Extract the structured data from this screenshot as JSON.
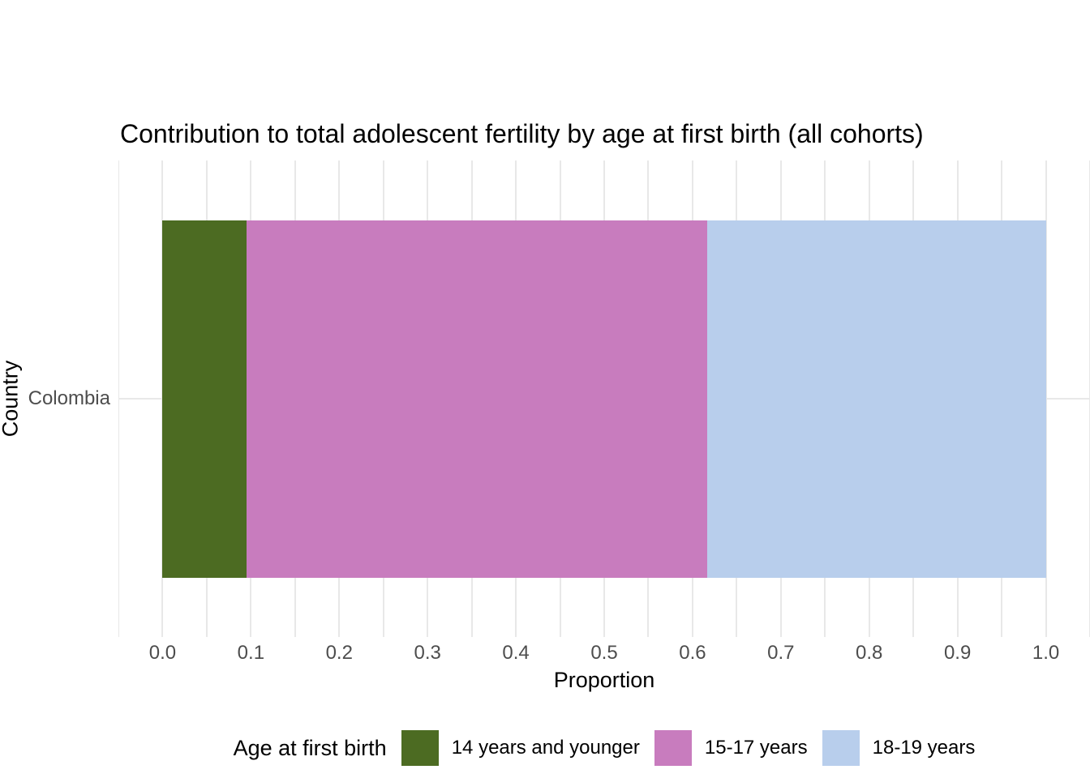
{
  "title": "Contribution to total adolescent fertility by age at first birth (all cohorts)",
  "colors": {
    "background": "#ffffff",
    "grid": "#e8e8e8",
    "tick_text": "#4d4d4d",
    "title_text": "#000000",
    "segment_green": "#4c6b22",
    "segment_pink": "#c87cbe",
    "segment_blue": "#b8ceec"
  },
  "chart_data": {
    "type": "bar",
    "orientation": "horizontal",
    "stacked": true,
    "title": "Contribution to total adolescent fertility by age at first birth (all cohorts)",
    "xlabel": "Proportion",
    "ylabel": "Country",
    "categories": [
      "Colombia"
    ],
    "series": [
      {
        "name": "14 years and younger",
        "values": [
          0.095
        ],
        "color": "#4c6b22"
      },
      {
        "name": "15-17 years",
        "values": [
          0.522
        ],
        "color": "#c87cbe"
      },
      {
        "name": "18-19 years",
        "values": [
          0.383
        ],
        "color": "#b8ceec"
      }
    ],
    "xlim": [
      0,
      1
    ],
    "x_tick_values": [
      0.0,
      0.1,
      0.2,
      0.3,
      0.4,
      0.5,
      0.6,
      0.7,
      0.8,
      0.9,
      1.0
    ],
    "x_ticks": [
      "0.0",
      "0.1",
      "0.2",
      "0.3",
      "0.4",
      "0.5",
      "0.6",
      "0.7",
      "0.8",
      "0.9",
      "1.0"
    ],
    "x_minor_step": 0.05,
    "grid": true,
    "legend_title": "Age at first birth",
    "legend_position": "bottom"
  }
}
